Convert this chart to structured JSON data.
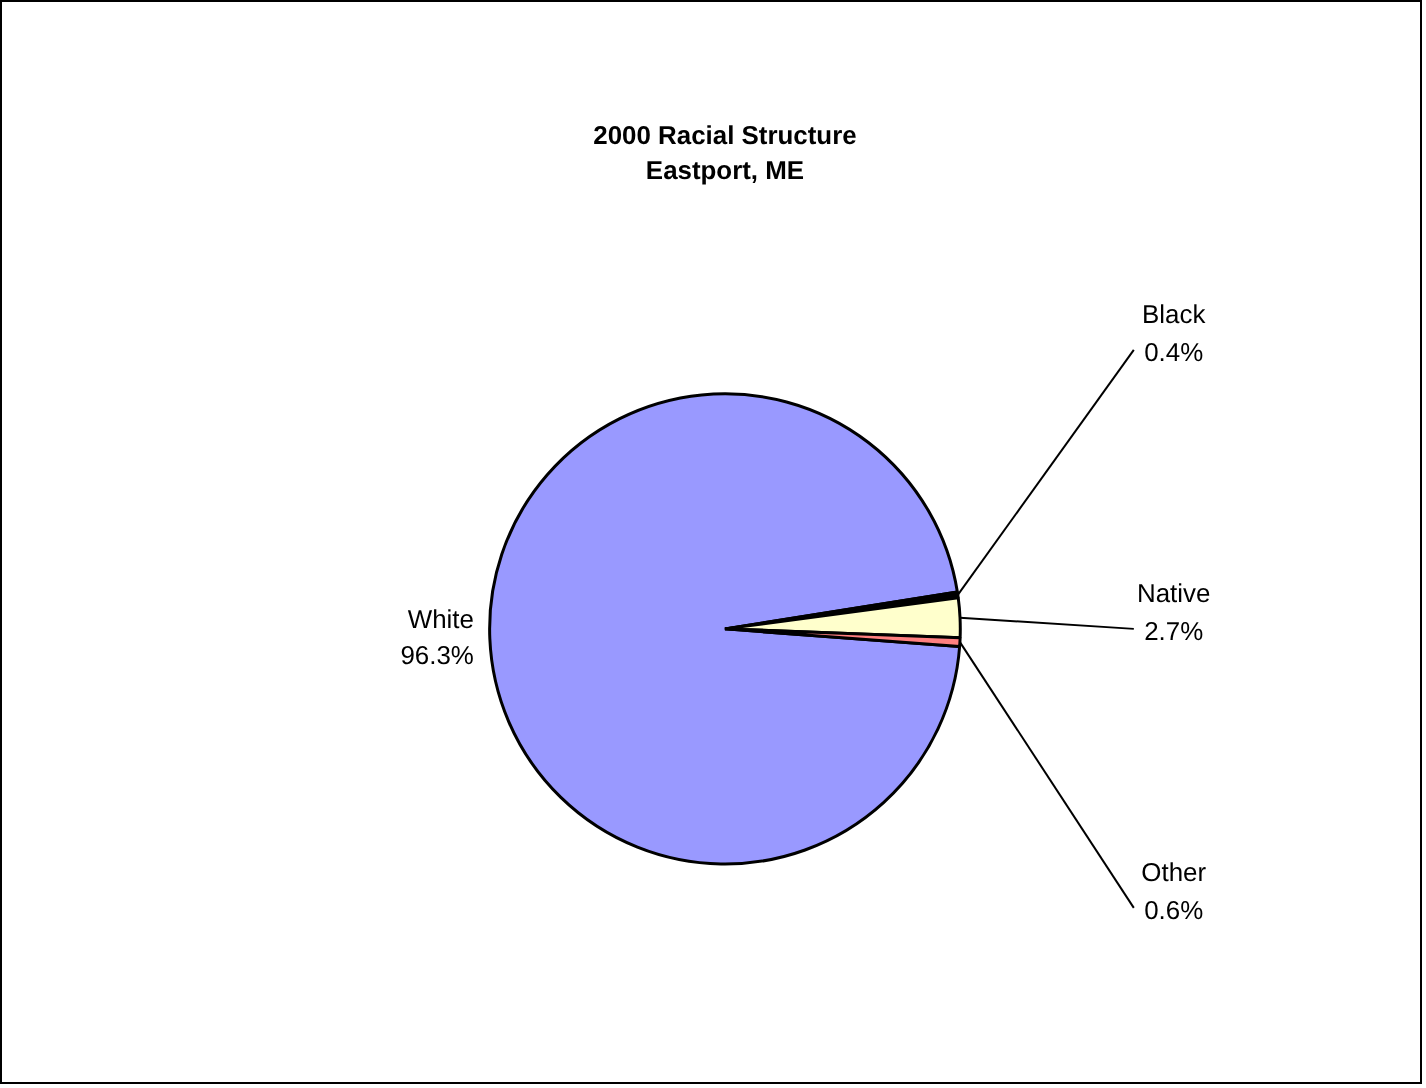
{
  "chart_data": {
    "type": "pie",
    "title": "2000 Racial Structure",
    "subtitle": "Eastport, ME",
    "categories": [
      "White",
      "Black",
      "Native",
      "Other"
    ],
    "values": [
      96.3,
      0.4,
      2.7,
      0.6
    ],
    "colors": [
      "#9999ff",
      "#000000",
      "#ffffcc",
      "#ff8080"
    ],
    "value_labels": [
      "96.3%",
      "0.4%",
      "2.7%",
      "0.6%"
    ],
    "legend": false
  }
}
